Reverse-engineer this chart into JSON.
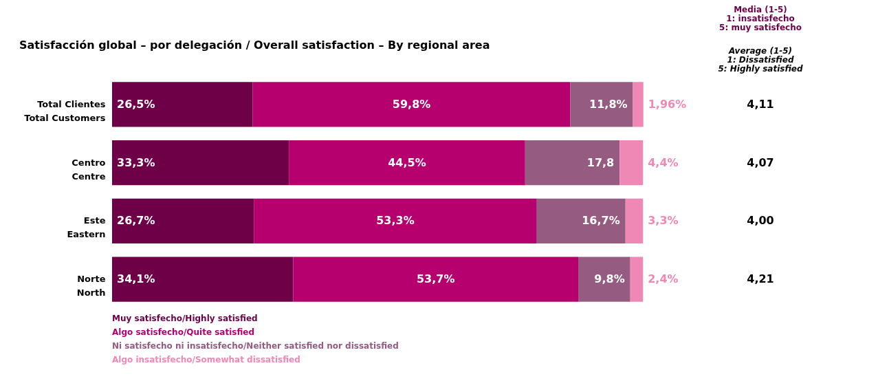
{
  "chart_data": {
    "type": "bar",
    "orientation": "horizontal",
    "stacked": true,
    "title": "Satisfacción global – por delegación / Overall satisfaction – By regional area",
    "categories": [
      "Total Clientes\nTotal Customers",
      "Centro\nCentre",
      "Este\nEastern",
      "Norte\nNorth"
    ],
    "series": [
      {
        "name": "Muy satisfecho/Highly satisfied",
        "color": "#6d0047",
        "values": [
          26.5,
          33.3,
          26.7,
          34.1
        ],
        "value_labels": [
          "26,5%",
          "33,3%",
          "26,7%",
          "34,1%"
        ]
      },
      {
        "name": "Algo satisfecho/Quite satisfied",
        "color": "#b5006e",
        "values": [
          59.8,
          44.5,
          53.3,
          53.7
        ],
        "value_labels": [
          "59,8%",
          "44,5%",
          "53,3%",
          "53,7%"
        ]
      },
      {
        "name": "Ni satisfecho ni insatisfecho/Neither satisfied nor dissatisfied",
        "color": "#955b80",
        "values": [
          11.8,
          17.8,
          16.7,
          9.8
        ],
        "value_labels": [
          "11,8%",
          "17,8",
          "16,7%",
          "9,8%"
        ]
      },
      {
        "name": "Algo insatisfecho/Somewhat dissatisfied",
        "color": "#f088b6",
        "values": [
          1.96,
          4.4,
          3.3,
          2.4
        ],
        "value_labels": [
          "1,96%",
          "4,4%",
          "3,3%",
          "2,4%"
        ]
      }
    ],
    "xlim": [
      0,
      100.1
    ],
    "tick_labels": "y",
    "legend": "bottom left",
    "annotations": [
      "Media (1-5)\n1: insatisfecho\n5: muy satisfecho",
      "Average (1-5)\n1: Dissatisfied\n5: Highly satisfied",
      "4,11",
      "4,07",
      "4,00",
      "4,21"
    ]
  }
}
